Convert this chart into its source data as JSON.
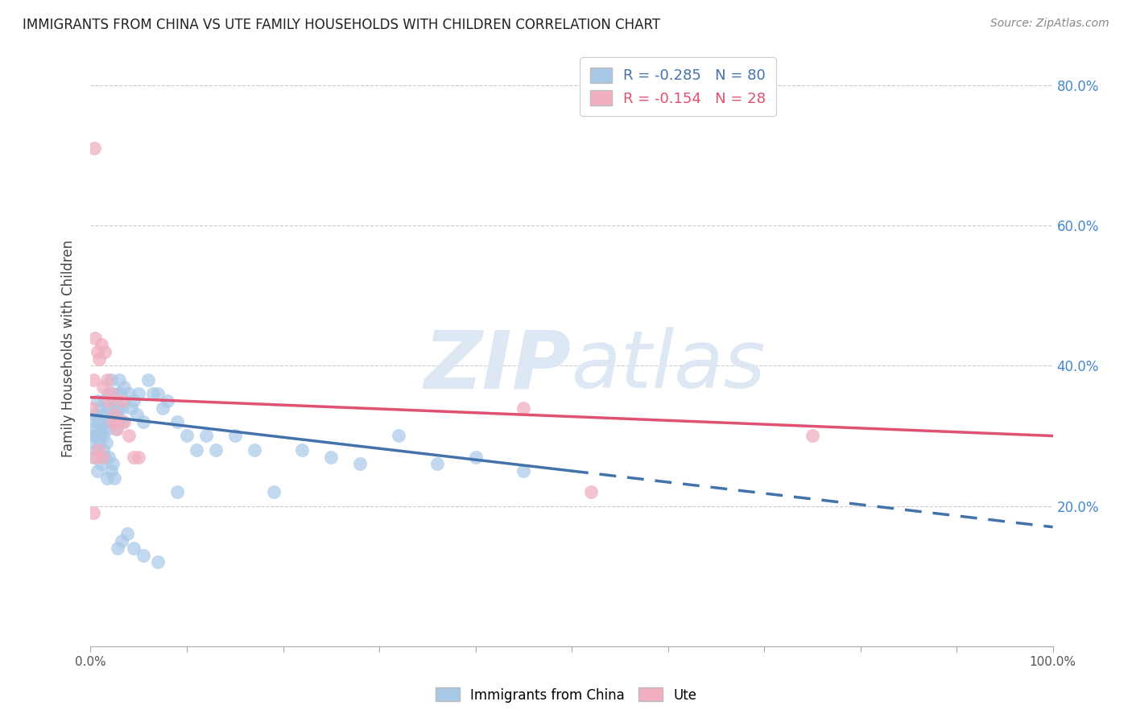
{
  "title": "IMMIGRANTS FROM CHINA VS UTE FAMILY HOUSEHOLDS WITH CHILDREN CORRELATION CHART",
  "source": "Source: ZipAtlas.com",
  "ylabel": "Family Households with Children",
  "blue_color": "#a8c8e8",
  "pink_color": "#f0b0c0",
  "blue_line_color": "#4472aa",
  "pink_line_color": "#e05070",
  "legend_R_blue": "-0.285",
  "legend_N_blue": "80",
  "legend_R_pink": "-0.154",
  "legend_N_pink": "28",
  "watermark_zip": "ZIP",
  "watermark_atlas": "atlas",
  "grid_color": "#cccccc",
  "right_tick_color": "#4488cc",
  "blue_scatter_x": [
    0.001,
    0.002,
    0.003,
    0.004,
    0.005,
    0.006,
    0.007,
    0.008,
    0.009,
    0.01,
    0.011,
    0.012,
    0.013,
    0.014,
    0.015,
    0.016,
    0.017,
    0.018,
    0.019,
    0.02,
    0.021,
    0.022,
    0.023,
    0.024,
    0.025,
    0.026,
    0.027,
    0.028,
    0.029,
    0.03,
    0.031,
    0.032,
    0.033,
    0.034,
    0.035,
    0.04,
    0.042,
    0.045,
    0.048,
    0.05,
    0.055,
    0.06,
    0.065,
    0.07,
    0.075,
    0.08,
    0.09,
    0.1,
    0.11,
    0.12,
    0.13,
    0.15,
    0.17,
    0.19,
    0.22,
    0.25,
    0.28,
    0.32,
    0.36,
    0.4,
    0.003,
    0.005,
    0.007,
    0.009,
    0.011,
    0.013,
    0.015,
    0.017,
    0.019,
    0.021,
    0.023,
    0.025,
    0.028,
    0.032,
    0.038,
    0.045,
    0.055,
    0.07,
    0.09,
    0.45
  ],
  "blue_scatter_y": [
    0.32,
    0.29,
    0.31,
    0.3,
    0.33,
    0.28,
    0.35,
    0.32,
    0.3,
    0.34,
    0.31,
    0.33,
    0.3,
    0.32,
    0.35,
    0.29,
    0.31,
    0.36,
    0.34,
    0.32,
    0.38,
    0.34,
    0.36,
    0.33,
    0.35,
    0.31,
    0.33,
    0.36,
    0.34,
    0.38,
    0.36,
    0.34,
    0.32,
    0.35,
    0.37,
    0.36,
    0.34,
    0.35,
    0.33,
    0.36,
    0.32,
    0.38,
    0.36,
    0.36,
    0.34,
    0.35,
    0.32,
    0.3,
    0.28,
    0.3,
    0.28,
    0.3,
    0.28,
    0.22,
    0.28,
    0.27,
    0.26,
    0.3,
    0.26,
    0.27,
    0.27,
    0.3,
    0.25,
    0.29,
    0.26,
    0.28,
    0.27,
    0.24,
    0.27,
    0.25,
    0.26,
    0.24,
    0.14,
    0.15,
    0.16,
    0.14,
    0.13,
    0.12,
    0.22,
    0.25
  ],
  "pink_scatter_x": [
    0.001,
    0.003,
    0.005,
    0.007,
    0.009,
    0.011,
    0.013,
    0.015,
    0.017,
    0.019,
    0.021,
    0.023,
    0.025,
    0.027,
    0.029,
    0.032,
    0.035,
    0.04,
    0.045,
    0.05,
    0.003,
    0.005,
    0.008,
    0.012,
    0.004,
    0.45,
    0.75,
    0.52
  ],
  "pink_scatter_y": [
    0.34,
    0.38,
    0.44,
    0.42,
    0.41,
    0.43,
    0.37,
    0.42,
    0.38,
    0.35,
    0.36,
    0.32,
    0.33,
    0.31,
    0.32,
    0.35,
    0.32,
    0.3,
    0.27,
    0.27,
    0.19,
    0.27,
    0.28,
    0.27,
    0.71,
    0.34,
    0.3,
    0.22
  ]
}
